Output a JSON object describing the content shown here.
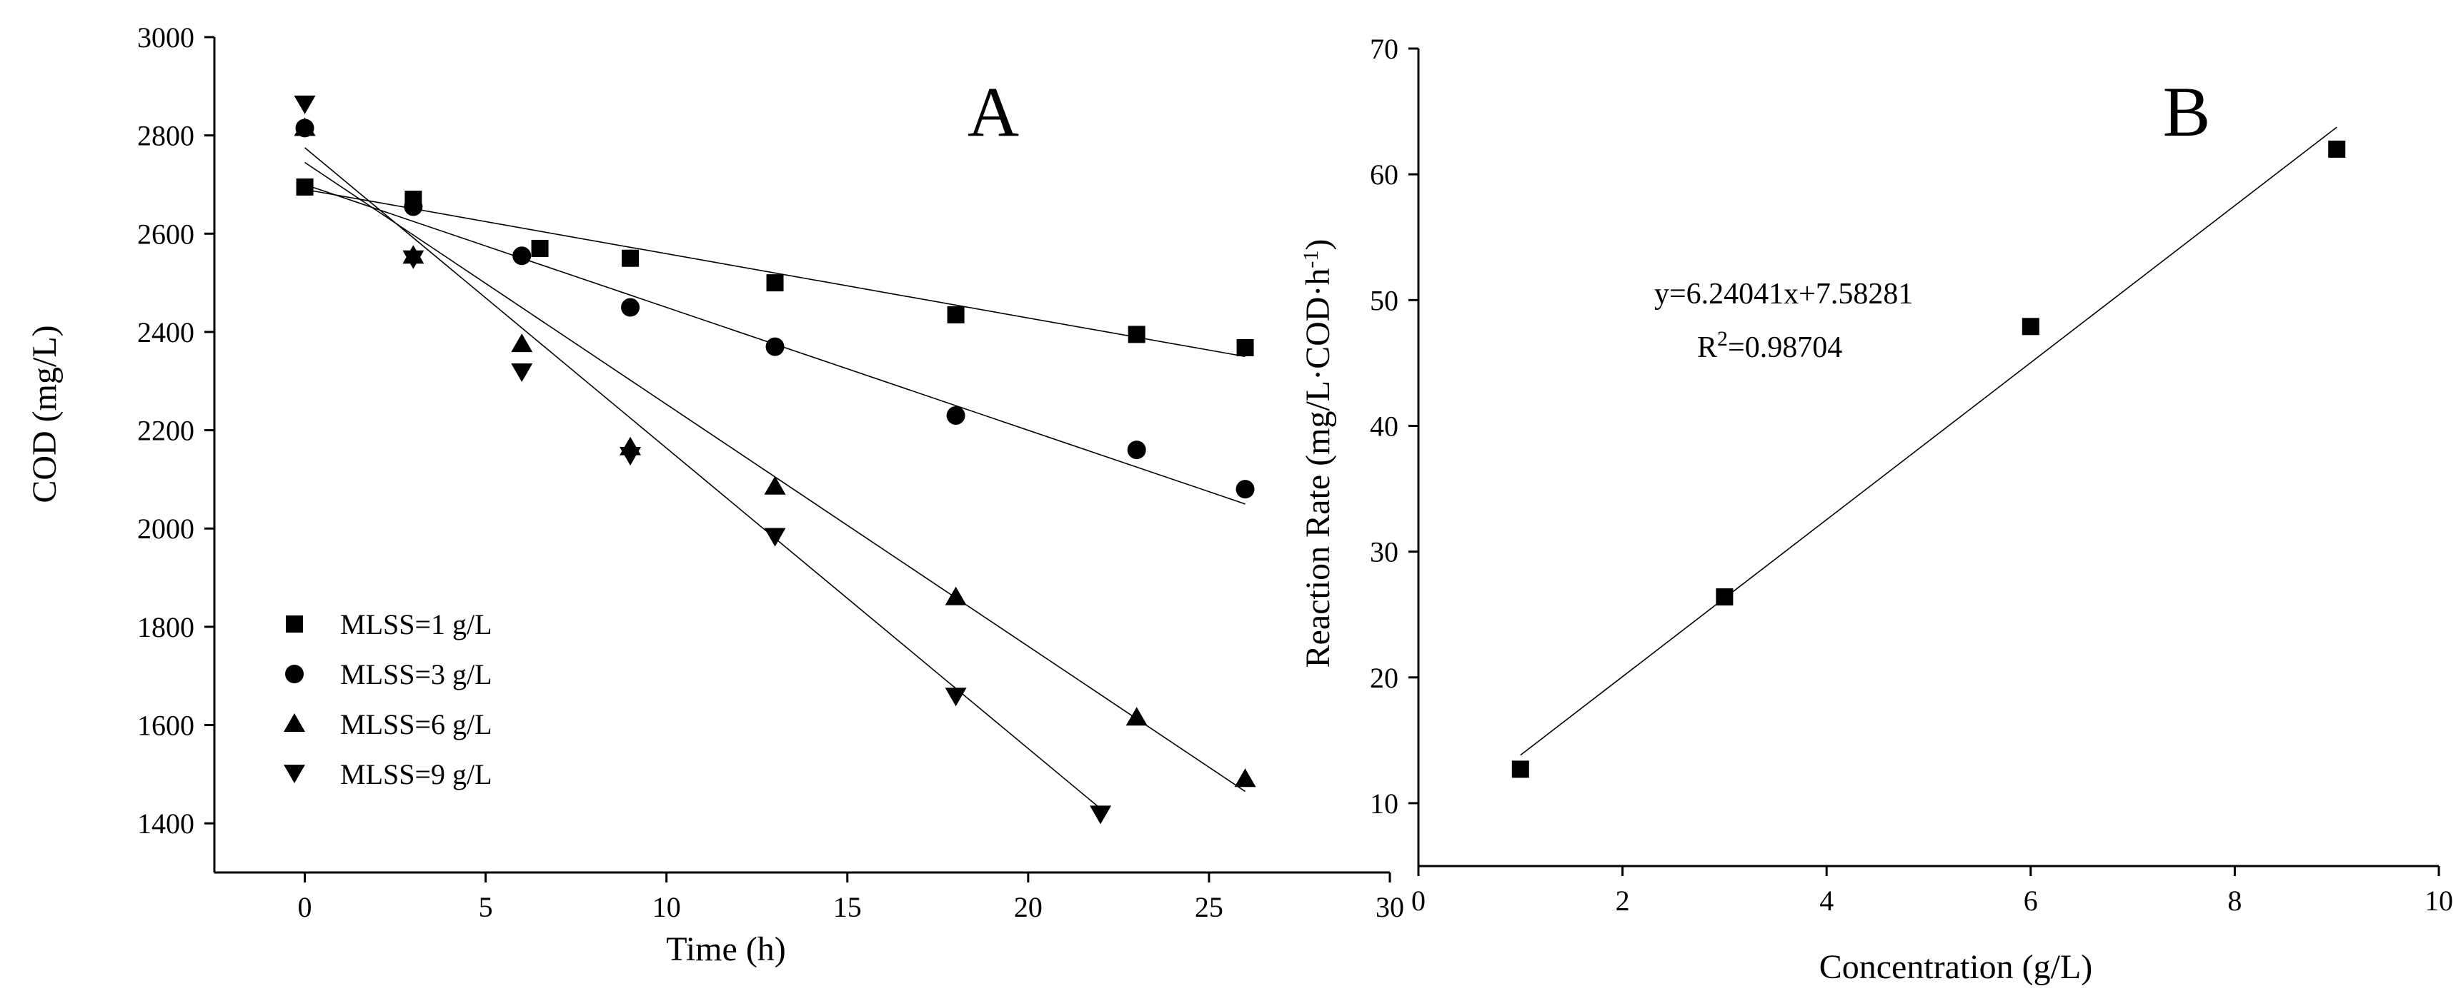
{
  "chart_data": [
    {
      "type": "scatter",
      "panel_label": "A",
      "title": "",
      "xlabel": "Time (h)",
      "ylabel": "COD (mg/L)",
      "xlim": [
        -2.5,
        30
      ],
      "ylim": [
        1300,
        3000
      ],
      "xticks": [
        0,
        5,
        10,
        15,
        20,
        25,
        30
      ],
      "yticks": [
        1400,
        1600,
        1800,
        2000,
        2200,
        2400,
        2600,
        2800,
        3000
      ],
      "legend_position": "bottom-left",
      "series": [
        {
          "name": "MLSS=1 g/L",
          "marker": "square",
          "x": [
            0,
            3,
            6.5,
            9,
            13,
            18,
            23,
            26
          ],
          "y": [
            2695,
            2670,
            2570,
            2550,
            2500,
            2435,
            2395,
            2368
          ],
          "fit": {
            "x": [
              0,
              26
            ],
            "y": [
              2690,
              2350
            ]
          }
        },
        {
          "name": "MLSS=3 g/L",
          "marker": "circle",
          "x": [
            0,
            3,
            6,
            9,
            13,
            18,
            23,
            26
          ],
          "y": [
            2815,
            2655,
            2555,
            2450,
            2370,
            2230,
            2160,
            2080
          ],
          "fit": {
            "x": [
              0,
              26
            ],
            "y": [
              2700,
              2050
            ]
          }
        },
        {
          "name": "MLSS=6 g/L",
          "marker": "triangle-up",
          "x": [
            0,
            3,
            6,
            9,
            13,
            18,
            23,
            26
          ],
          "y": [
            2815,
            2555,
            2375,
            2165,
            2085,
            1860,
            1615,
            1490
          ],
          "fit": {
            "x": [
              0,
              26
            ],
            "y": [
              2745,
              1465
            ]
          }
        },
        {
          "name": "MLSS=9 g/L",
          "marker": "triangle-down",
          "x": [
            0,
            3,
            6,
            9,
            13,
            18,
            22
          ],
          "y": [
            2865,
            2550,
            2320,
            2150,
            1985,
            1660,
            1420
          ],
          "fit": {
            "x": [
              0,
              22
            ],
            "y": [
              2775,
              1430
            ]
          }
        }
      ]
    },
    {
      "type": "scatter",
      "panel_label": "B",
      "title": "",
      "xlabel": "Concentration (g/L)",
      "ylabel": "Reaction Rate (mg/L·COD·h",
      "ylabel_sup": "-1",
      "ylabel_end": ")",
      "xlim": [
        0,
        10
      ],
      "ylim": [
        5,
        70
      ],
      "xticks": [
        0,
        2,
        4,
        6,
        8,
        10
      ],
      "yticks": [
        10,
        20,
        30,
        40,
        50,
        60,
        70
      ],
      "equation": "y=6.24041x+7.58281",
      "r2_prefix": "R",
      "r2_sup": "2",
      "r2_value": "=0.98704",
      "series": [
        {
          "name": "Reaction rate",
          "marker": "square",
          "x": [
            1,
            3,
            6,
            9
          ],
          "y": [
            12.7,
            26.4,
            47.9,
            62.0
          ],
          "fit": {
            "x": [
              1,
              9
            ],
            "y": [
              13.82,
              63.75
            ]
          }
        }
      ]
    }
  ]
}
